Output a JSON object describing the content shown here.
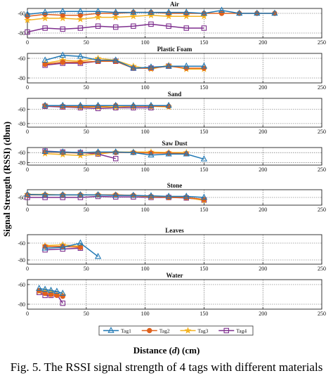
{
  "ylabel": "Signal Strength (RSSI) (dbm)",
  "xlabel_prefix": "Distance (",
  "xlabel_var": "d",
  "xlabel_suffix": ") (cm)",
  "caption": "Fig. 5.  The RSSI signal strength of 4 tags with different materials",
  "legend": [
    "Tag1",
    "Tag2",
    "Tag3",
    "Tag4"
  ],
  "colors": {
    "Tag1": "#1f77b4",
    "Tag2": "#e0611c",
    "Tag3": "#f4b321",
    "Tag4": "#7e2f8e"
  },
  "markers": {
    "Tag1": "triangle",
    "Tag2": "circle",
    "Tag3": "star",
    "Tag4": "square"
  },
  "chart_data": [
    {
      "type": "line",
      "title": "Air",
      "xlim": [
        0,
        250
      ],
      "xticks": [
        0,
        50,
        100,
        150,
        200,
        250
      ],
      "ylim": [
        -85,
        -55
      ],
      "yticks": [
        -60,
        -80
      ],
      "grid": true,
      "series": [
        {
          "name": "Tag1",
          "x": [
            0,
            15,
            30,
            45,
            60,
            75,
            90,
            105,
            120,
            135,
            150,
            165,
            180,
            195,
            210
          ],
          "y": [
            -61,
            -59,
            -58,
            -58,
            -58,
            -59,
            -59,
            -59,
            -59,
            -59,
            -60,
            -57,
            -60,
            -60,
            -60
          ]
        },
        {
          "name": "Tag2",
          "x": [
            0,
            15,
            30,
            45,
            60,
            75,
            90,
            105,
            120,
            135,
            150,
            165,
            180,
            195,
            210
          ],
          "y": [
            -63,
            -61,
            -62,
            -62,
            -60,
            -60,
            -59,
            -59,
            -60,
            -60,
            -60,
            -60,
            -60,
            -60,
            -60
          ]
        },
        {
          "name": "Tag3",
          "x": [
            0,
            15,
            30,
            45,
            60,
            75,
            90,
            105,
            120,
            135,
            150
          ],
          "y": [
            -67,
            -65,
            -65,
            -66,
            -64,
            -64,
            -63,
            -62,
            -63,
            -63,
            -63
          ]
        },
        {
          "name": "Tag4",
          "x": [
            0,
            15,
            30,
            45,
            60,
            75,
            90,
            105,
            120,
            135,
            150
          ],
          "y": [
            -79,
            -75,
            -76,
            -75,
            -73,
            -74,
            -73,
            -71,
            -73,
            -75,
            -75
          ]
        }
      ]
    },
    {
      "type": "line",
      "title": "Plastic Foam",
      "xlim": [
        0,
        250
      ],
      "xticks": [
        0,
        50,
        100,
        150,
        200,
        250
      ],
      "ylim": [
        -85,
        -55
      ],
      "yticks": [
        -60,
        -80
      ],
      "grid": true,
      "series": [
        {
          "name": "Tag1",
          "x": [
            15,
            30,
            45,
            60,
            75,
            90,
            105,
            120,
            135,
            150
          ],
          "y": [
            -62,
            -57,
            -58,
            -62,
            -62,
            -70,
            -69,
            -68,
            -68,
            -68
          ]
        },
        {
          "name": "Tag2",
          "x": [
            15,
            30,
            45,
            60,
            75,
            90,
            105,
            120,
            135,
            150
          ],
          "y": [
            -66,
            -64,
            -64,
            -63,
            -63,
            -70,
            -70,
            -68,
            -70,
            -70
          ]
        },
        {
          "name": "Tag3",
          "x": [
            15,
            30,
            45,
            60,
            75,
            90,
            105,
            120,
            135,
            150
          ],
          "y": [
            -65,
            -62,
            -63,
            -60,
            -62,
            -68,
            -71,
            -67,
            -71,
            -71
          ]
        },
        {
          "name": "Tag4",
          "x": [
            15,
            30,
            45,
            60,
            75,
            90,
            105,
            120
          ],
          "y": [
            -67,
            -65,
            -65,
            -63,
            -63,
            -70,
            -70,
            -68
          ]
        }
      ]
    },
    {
      "type": "line",
      "title": "Sand",
      "xlim": [
        0,
        250
      ],
      "xticks": [
        0,
        50,
        100,
        150,
        200,
        250
      ],
      "ylim": [
        -85,
        -45
      ],
      "yticks": [
        -60,
        -80
      ],
      "grid": true,
      "series": [
        {
          "name": "Tag1",
          "x": [
            15,
            30,
            45,
            60,
            75,
            90,
            105,
            120
          ],
          "y": [
            -55,
            -55,
            -55,
            -55,
            -55,
            -55,
            -55,
            -55
          ]
        },
        {
          "name": "Tag2",
          "x": [
            15,
            30,
            45,
            60,
            75,
            90,
            105,
            120
          ],
          "y": [
            -55,
            -56,
            -56,
            -56,
            -55,
            -56,
            -56,
            -56
          ]
        },
        {
          "name": "Tag3",
          "x": [
            15,
            30,
            45,
            60,
            75,
            90,
            105,
            120
          ],
          "y": [
            -55,
            -56,
            -57,
            -57,
            -57,
            -56,
            -56,
            -57
          ]
        },
        {
          "name": "Tag4",
          "x": [
            15,
            30,
            45,
            60,
            75,
            90,
            105
          ],
          "y": [
            -56,
            -57,
            -58,
            -59,
            -58,
            -58,
            -58
          ]
        }
      ]
    },
    {
      "type": "line",
      "title": "Saw Dust",
      "xlim": [
        0,
        250
      ],
      "xticks": [
        0,
        50,
        100,
        150,
        200,
        250
      ],
      "ylim": [
        -85,
        -50
      ],
      "yticks": [
        -60,
        -80
      ],
      "grid": true,
      "series": [
        {
          "name": "Tag1",
          "x": [
            15,
            30,
            45,
            60,
            75,
            90,
            105,
            120,
            135,
            150
          ],
          "y": [
            -58,
            -59,
            -60,
            -59,
            -59,
            -60,
            -65,
            -63,
            -63,
            -73
          ]
        },
        {
          "name": "Tag2",
          "x": [
            15,
            30,
            45,
            60,
            75,
            90,
            105,
            120,
            135
          ],
          "y": [
            -59,
            -60,
            -61,
            -60,
            -60,
            -60,
            -61,
            -61,
            -62
          ]
        },
        {
          "name": "Tag3",
          "x": [
            15,
            30,
            45,
            60,
            75,
            90,
            105,
            120,
            135
          ],
          "y": [
            -62,
            -64,
            -66,
            -63,
            -59,
            -59,
            -59,
            -60,
            -60
          ]
        },
        {
          "name": "Tag4",
          "x": [
            15,
            30,
            45,
            60,
            75
          ],
          "y": [
            -57,
            -59,
            -60,
            -63,
            -72
          ]
        }
      ]
    },
    {
      "type": "line",
      "title": "Stone",
      "xlim": [
        0,
        250
      ],
      "xticks": [
        0,
        50,
        100,
        150,
        200,
        250
      ],
      "ylim": [
        -75,
        -45
      ],
      "yticks": [
        -60
      ],
      "grid": true,
      "series": [
        {
          "name": "Tag1",
          "x": [
            0,
            15,
            30,
            45,
            60,
            75,
            90,
            105,
            120,
            135,
            150
          ],
          "y": [
            -54,
            -55,
            -55,
            -55,
            -55,
            -56,
            -56,
            -57,
            -58,
            -58,
            -60
          ]
        },
        {
          "name": "Tag2",
          "x": [
            0,
            15,
            30,
            45,
            60,
            75,
            90,
            105,
            120,
            135,
            150
          ],
          "y": [
            -55,
            -55,
            -55,
            -55,
            -55,
            -55,
            -56,
            -58,
            -60,
            -60,
            -64
          ]
        },
        {
          "name": "Tag3",
          "x": [
            0,
            15,
            30,
            45,
            60,
            75,
            90,
            105,
            120,
            135,
            150
          ],
          "y": [
            -54,
            -54,
            -55,
            -55,
            -55,
            -55,
            -56,
            -59,
            -59,
            -60,
            -66
          ]
        },
        {
          "name": "Tag4",
          "x": [
            0,
            15,
            30,
            45,
            60,
            75,
            90,
            105,
            120,
            135,
            150
          ],
          "y": [
            -60,
            -60,
            -60,
            -60,
            -58,
            -59,
            -59,
            -60,
            -60,
            -61,
            -65
          ]
        }
      ]
    },
    {
      "type": "line",
      "title": "Leaves",
      "xlim": [
        0,
        250
      ],
      "xticks": [
        0,
        50,
        100,
        150,
        200,
        250
      ],
      "ylim": [
        -85,
        -50
      ],
      "yticks": [
        -60,
        -80
      ],
      "grid": true,
      "series": [
        {
          "name": "Tag1",
          "x": [
            15,
            30,
            45,
            60
          ],
          "y": [
            -66,
            -65,
            -60,
            -76
          ]
        },
        {
          "name": "Tag2",
          "x": [
            15,
            30,
            45
          ],
          "y": [
            -64,
            -64,
            -65
          ]
        },
        {
          "name": "Tag3",
          "x": [
            15,
            30,
            45
          ],
          "y": [
            -63,
            -62,
            -64
          ]
        },
        {
          "name": "Tag4",
          "x": [
            15,
            30,
            45
          ],
          "y": [
            -68,
            -67,
            -66
          ]
        }
      ]
    },
    {
      "type": "line",
      "title": "Water",
      "xlim": [
        0,
        250
      ],
      "xticks": [
        0,
        50,
        100,
        150,
        200,
        250
      ],
      "ylim": [
        -85,
        -55
      ],
      "yticks": [
        -60,
        -80
      ],
      "grid": true,
      "series": [
        {
          "name": "Tag1",
          "x": [
            10,
            15,
            20,
            25,
            30
          ],
          "y": [
            -64,
            -65,
            -66,
            -67,
            -69
          ]
        },
        {
          "name": "Tag2",
          "x": [
            10,
            15,
            20,
            25,
            30
          ],
          "y": [
            -66,
            -69,
            -70,
            -71,
            -72
          ]
        },
        {
          "name": "Tag3",
          "x": [
            10,
            15,
            20,
            25,
            30
          ],
          "y": [
            -67,
            -67,
            -68,
            -70,
            -71
          ]
        },
        {
          "name": "Tag4",
          "x": [
            10,
            15,
            20,
            25,
            30
          ],
          "y": [
            -68,
            -71,
            -71,
            -70,
            -79
          ]
        }
      ]
    }
  ]
}
